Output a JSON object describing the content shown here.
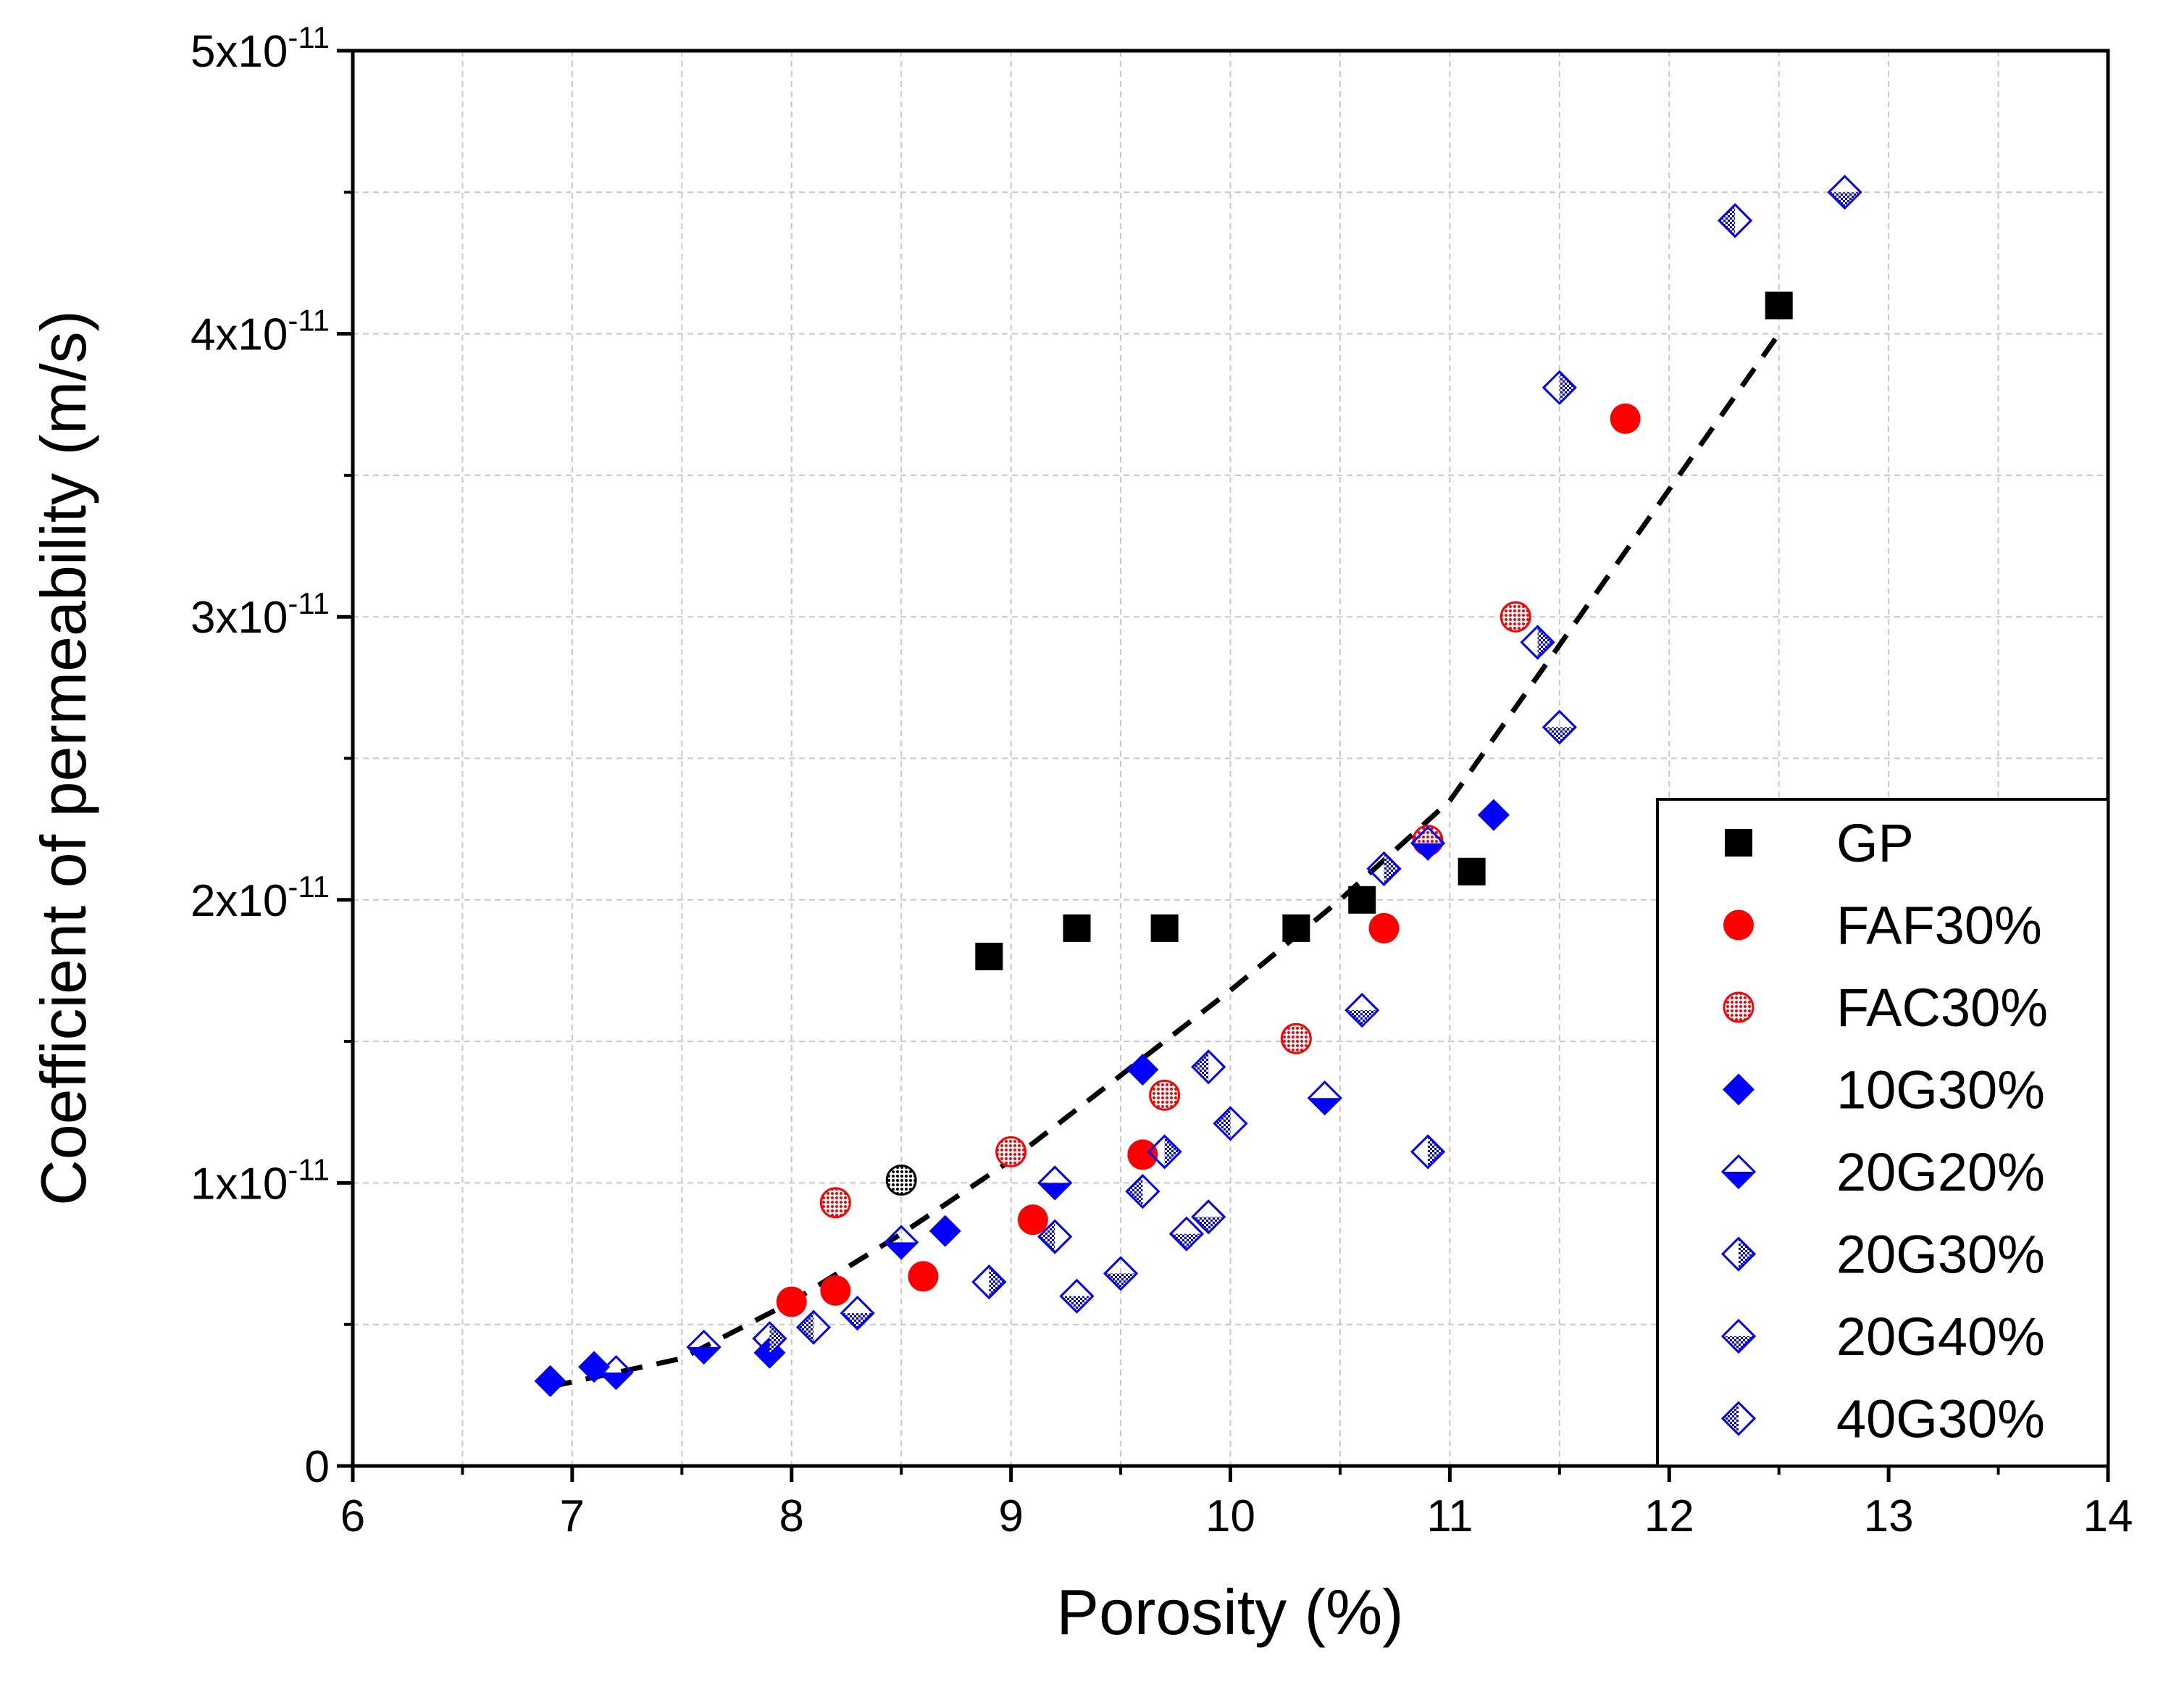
{
  "chart_data": {
    "type": "scatter",
    "xlabel": "Porosity (%)",
    "ylabel": "Coefficient of permeability (m/s)",
    "xlim": [
      6,
      14
    ],
    "ylim": [
      0,
      5e-11
    ],
    "grid": true,
    "legend_position": "right",
    "x_ticks": [
      {
        "value": 6,
        "label": "6"
      },
      {
        "value": 7,
        "label": "7"
      },
      {
        "value": 8,
        "label": "8"
      },
      {
        "value": 9,
        "label": "9"
      },
      {
        "value": 10,
        "label": "10"
      },
      {
        "value": 11,
        "label": "11"
      },
      {
        "value": 12,
        "label": "12"
      },
      {
        "value": 13,
        "label": "13"
      },
      {
        "value": 14,
        "label": "14"
      }
    ],
    "y_ticks": [
      {
        "value": 0,
        "mantissa": "0",
        "exponent": ""
      },
      {
        "value": 1e-11,
        "mantissa": "1x10",
        "exponent": "-11"
      },
      {
        "value": 2e-11,
        "mantissa": "2x10",
        "exponent": "-11"
      },
      {
        "value": 3e-11,
        "mantissa": "3x10",
        "exponent": "-11"
      },
      {
        "value": 4e-11,
        "mantissa": "4x10",
        "exponent": "-11"
      },
      {
        "value": 5e-11,
        "mantissa": "5x10",
        "exponent": "-11"
      }
    ],
    "series": [
      {
        "name": "GP",
        "marker": "square",
        "color": "#000000",
        "points": [
          [
            8.9,
            1.8e-11
          ],
          [
            9.3,
            1.9e-11
          ],
          [
            9.7,
            1.9e-11
          ],
          [
            10.3,
            1.9e-11
          ],
          [
            10.6,
            2e-11
          ],
          [
            11.1,
            2.1e-11
          ],
          [
            12.5,
            4.1e-11
          ]
        ]
      },
      {
        "name": "FAF30%",
        "marker": "circle",
        "color": "#ff0000",
        "points": [
          [
            8.0,
            5.8e-12
          ],
          [
            8.2,
            6.2e-12
          ],
          [
            8.6,
            6.7e-12
          ],
          [
            9.1,
            8.7e-12
          ],
          [
            9.6,
            1.1e-11
          ],
          [
            10.7,
            1.9e-11
          ],
          [
            11.8,
            3.7e-11
          ]
        ]
      },
      {
        "name": "FAC30%",
        "marker": "circle-hatched",
        "color": "#ff0000",
        "points": [
          [
            8.2,
            9.3e-12
          ],
          [
            9.0,
            1.11e-11
          ],
          [
            9.7,
            1.31e-11
          ],
          [
            10.3,
            1.51e-11
          ],
          [
            10.9,
            2.21e-11
          ],
          [
            11.3,
            3e-11
          ]
        ]
      },
      {
        "name": "10G30%",
        "marker": "diamond",
        "color": "#0000ff",
        "points": [
          [
            6.9,
            3e-12
          ],
          [
            7.1,
            3.5e-12
          ],
          [
            7.9,
            4e-12
          ],
          [
            8.7,
            8.3e-12
          ],
          [
            9.6,
            1.4e-11
          ],
          [
            11.2,
            2.3e-11
          ]
        ]
      },
      {
        "name": "20G20%",
        "marker": "diamond-half-bottom",
        "color": "#0000ff",
        "points": [
          [
            7.2,
            3.3e-12
          ],
          [
            7.6,
            4.2e-12
          ],
          [
            8.5,
            7.9e-12
          ],
          [
            9.2,
            1e-11
          ],
          [
            10.43,
            1.3e-11
          ],
          [
            10.9,
            2.2e-11
          ]
        ]
      },
      {
        "name": "20G30%",
        "marker": "diamond-half-right",
        "color": "#0000ff",
        "points": [
          [
            7.9,
            4.5e-12
          ],
          [
            8.9,
            6.5e-12
          ],
          [
            9.7,
            1.11e-11
          ],
          [
            10.7,
            2.11e-11
          ],
          [
            10.9,
            1.11e-11
          ],
          [
            11.4,
            2.91e-11
          ],
          [
            11.5,
            3.81e-11
          ]
        ]
      },
      {
        "name": "20G40%",
        "marker": "diamond-hatched-bottom",
        "color": "#0000ff",
        "points": [
          [
            8.3,
            5.4e-12
          ],
          [
            9.3,
            6e-12
          ],
          [
            9.5,
            6.8e-12
          ],
          [
            9.8,
            8.2e-12
          ],
          [
            9.9,
            8.8e-12
          ],
          [
            10.6,
            1.61e-11
          ],
          [
            11.5,
            2.61e-11
          ],
          [
            12.8,
            4.5e-11
          ]
        ]
      },
      {
        "name": "40G30%",
        "marker": "diamond-half-left",
        "color": "#0000ff",
        "points": [
          [
            8.1,
            4.9e-12
          ],
          [
            9.2,
            8.1e-12
          ],
          [
            9.6,
            9.7e-12
          ],
          [
            9.9,
            1.41e-11
          ],
          [
            10.0,
            1.21e-11
          ],
          [
            12.3,
            4.4e-11
          ]
        ]
      }
    ],
    "outliers": [
      {
        "marker": "circle-hatched",
        "color": "#000000",
        "x": 8.5,
        "y": 1.01e-11
      }
    ],
    "trendline": {
      "style": "dashed",
      "color": "#000000",
      "points": [
        [
          6.9,
          2.8e-12
        ],
        [
          7.5,
          3.8e-12
        ],
        [
          8.0,
          5.8e-12
        ],
        [
          8.5,
          8.2e-12
        ],
        [
          9.0,
          1.08e-11
        ],
        [
          9.5,
          1.38e-11
        ],
        [
          10.0,
          1.68e-11
        ],
        [
          10.5,
          2e-11
        ],
        [
          11.0,
          2.35e-11
        ],
        [
          11.5,
          2.9e-11
        ],
        [
          12.0,
          3.45e-11
        ],
        [
          12.5,
          4e-11
        ]
      ]
    }
  }
}
